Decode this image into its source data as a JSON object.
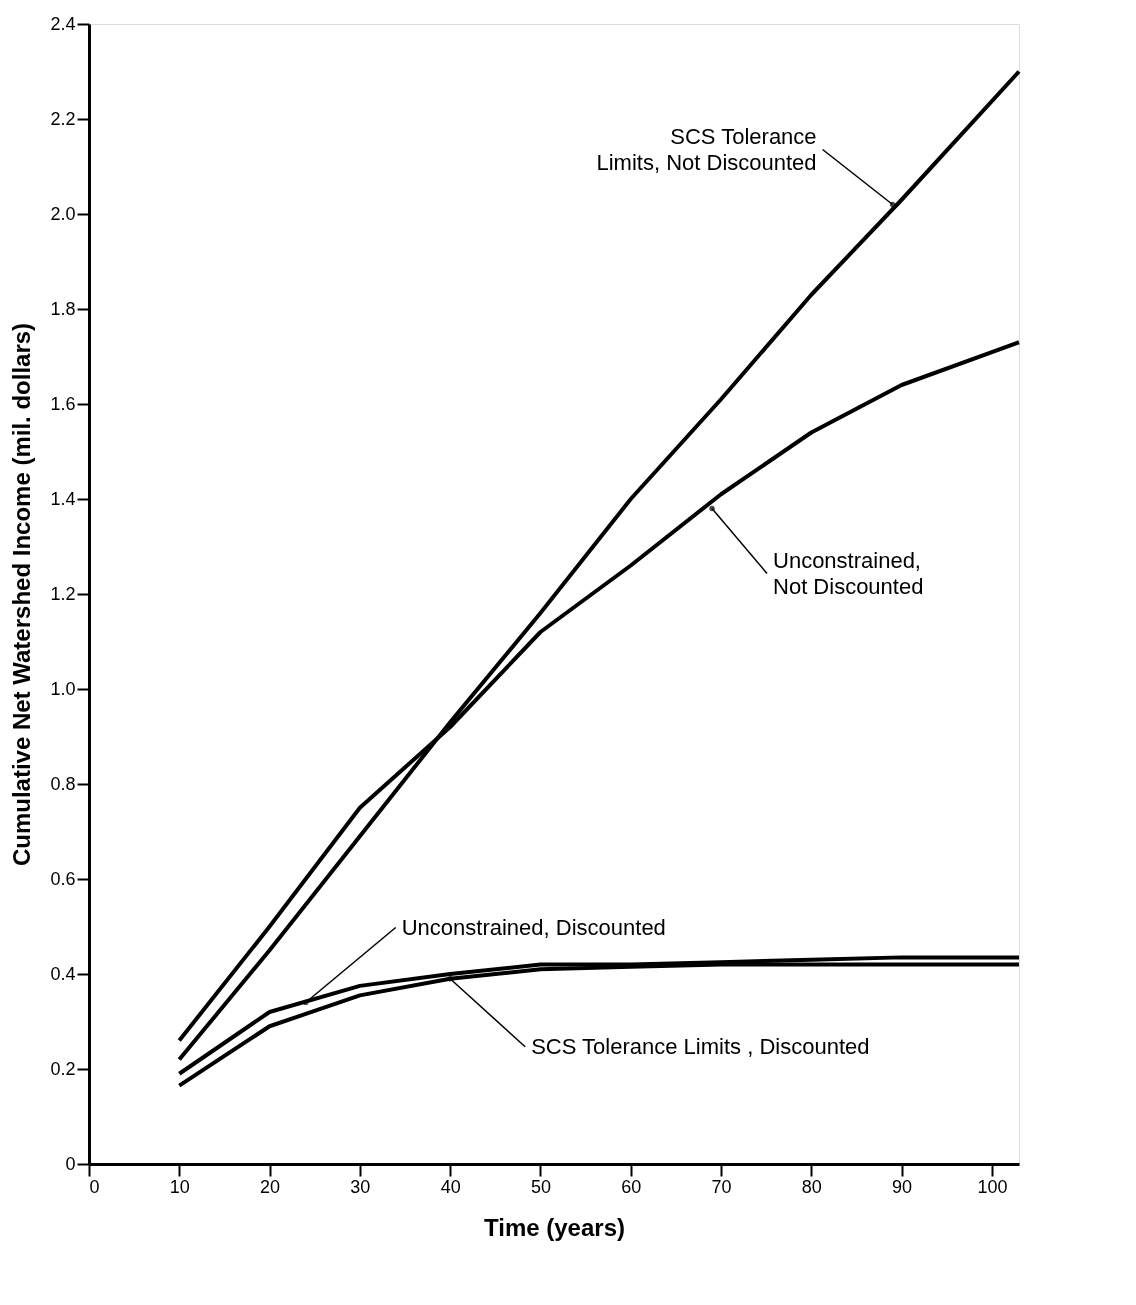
{
  "chart_data": {
    "type": "line",
    "xlabel": "Time  (years)",
    "ylabel": "Cumulative Net Watershed Income  (mil. dollars)",
    "xlim": [
      0,
      103
    ],
    "xticks": [
      0,
      10,
      20,
      30,
      40,
      50,
      60,
      70,
      80,
      90,
      100
    ],
    "ylim": [
      0,
      2.4
    ],
    "yticks": [
      0,
      0.2,
      0.4,
      0.6,
      0.8,
      {
        "value": 1.0,
        "label": "1.0"
      },
      1.2,
      1.4,
      1.6,
      1.8,
      {
        "value": 2.0,
        "label": "2.0"
      },
      2.2,
      2.4
    ],
    "grid": false,
    "marker": "none",
    "line_style": "solid",
    "series": [
      {
        "color": "#000000",
        "x": [
          10,
          20,
          30,
          40,
          50,
          60,
          70,
          80,
          90,
          103
        ],
        "values": [
          0.22,
          0.45,
          0.69,
          0.93,
          1.16,
          1.4,
          1.61,
          1.83,
          2.03,
          2.3
        ]
      },
      {
        "color": "#000000",
        "x": [
          10,
          20,
          30,
          40,
          50,
          60,
          70,
          80,
          90,
          103
        ],
        "values": [
          0.26,
          0.5,
          0.75,
          0.92,
          1.12,
          1.26,
          1.41,
          1.54,
          1.64,
          1.73
        ]
      },
      {
        "color": "#000000",
        "x": [
          10,
          20,
          30,
          40,
          50,
          60,
          70,
          80,
          90,
          103
        ],
        "values": [
          0.19,
          0.32,
          0.375,
          0.4,
          0.42,
          0.42,
          0.425,
          0.43,
          0.435,
          0.435
        ]
      },
      {
        "color": "#000000",
        "x": [
          10,
          20,
          30,
          40,
          50,
          60,
          70,
          80,
          90,
          103
        ],
        "values": [
          0.165,
          0.29,
          0.355,
          0.39,
          0.41,
          0.415,
          0.42,
          0.42,
          0.42,
          0.42
        ]
      }
    ],
    "annotations": [
      {
        "text": "SCS  Tolerance\nLimits, Not Discounted",
        "x": 89,
        "y": 2.02
      },
      {
        "text": "Unconstrained,\nNot Discounted",
        "x": 69,
        "y": 1.38
      },
      {
        "text": "Unconstrained, Discounted",
        "x": 24,
        "y": 0.34
      },
      {
        "text": "SCS  Tolerance Limits , Discounted",
        "x": 40,
        "y": 0.39
      }
    ]
  }
}
